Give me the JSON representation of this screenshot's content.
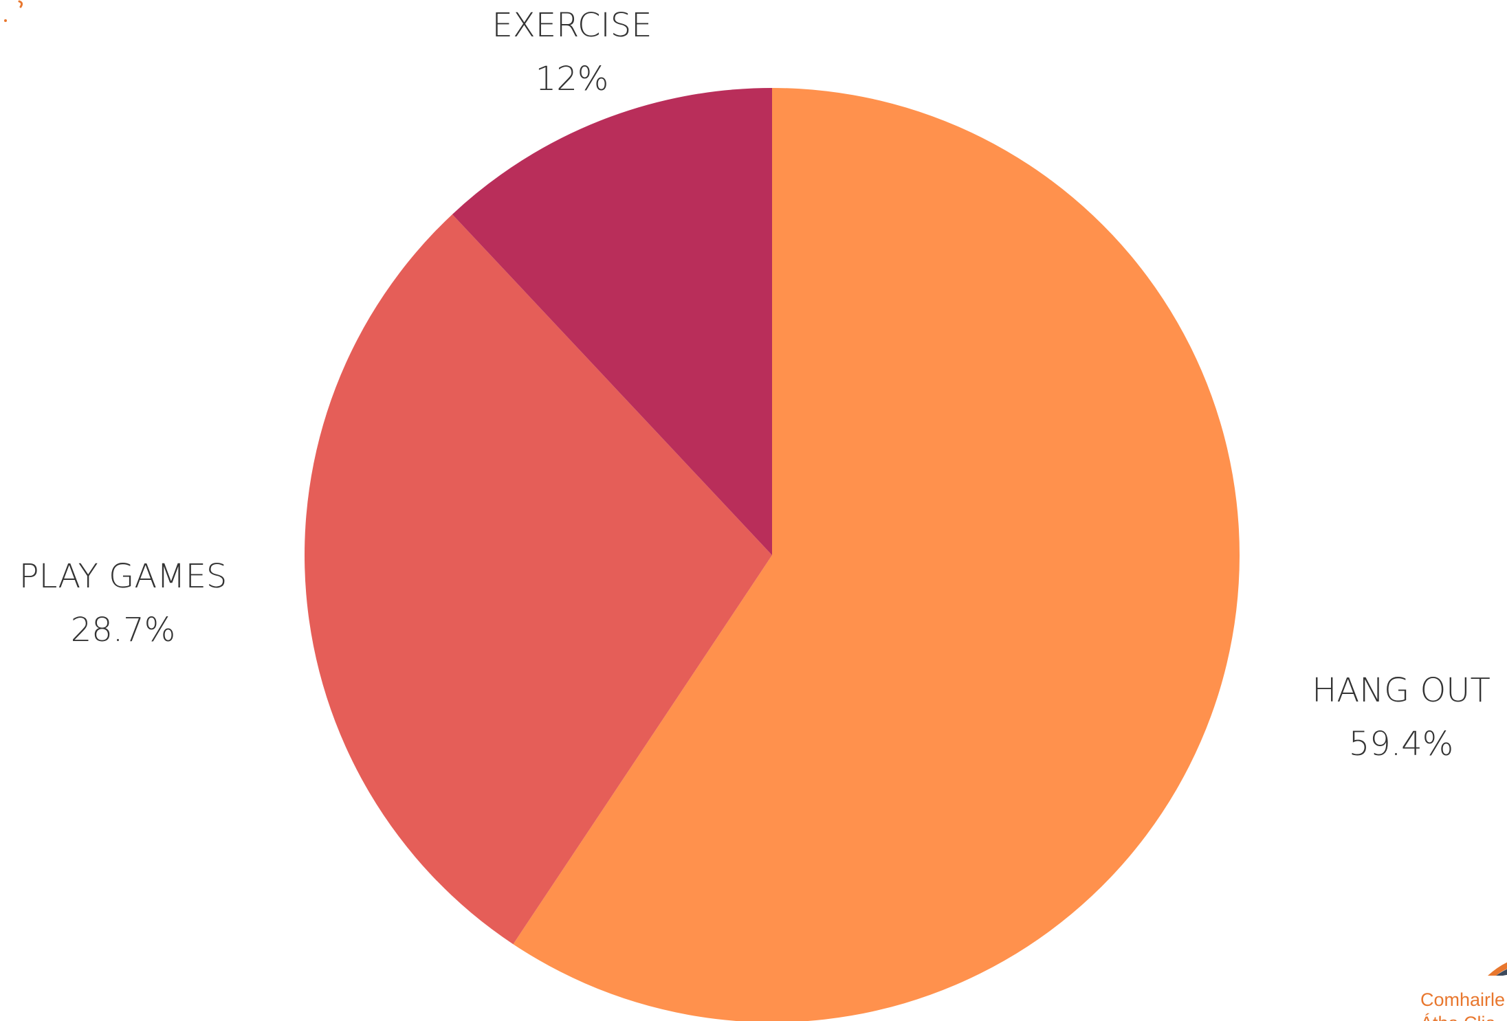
{
  "chart_data": {
    "type": "pie",
    "title": "",
    "slices": [
      {
        "label": "HANG OUT",
        "value": 59.4,
        "value_label": "59.4%",
        "color": "#ff914d"
      },
      {
        "label": "PLAY GAMES",
        "value": 28.7,
        "value_label": "28.7%",
        "color": "#e55e58"
      },
      {
        "label": "EXERCISE",
        "value": 12,
        "value_label": "12%",
        "color": "#b92e5a"
      }
    ],
    "start_angle_deg": 0,
    "direction": "clockwise",
    "legend": "none"
  },
  "logo": {
    "line1": "Comhairle",
    "line2": "Átha Clia",
    "color": "#e8772e",
    "icon": "council-logo-icon"
  }
}
